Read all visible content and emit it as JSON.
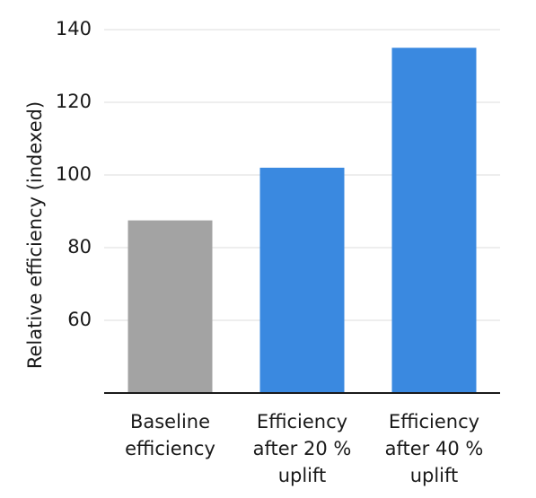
{
  "chart_data": {
    "type": "bar",
    "title": "",
    "xlabel": "",
    "ylabel": "Relative efficiency (indexed)",
    "ylim": [
      40,
      140
    ],
    "yticks": [
      60,
      80,
      100,
      120,
      140
    ],
    "grid": true,
    "legend": "none",
    "categories": [
      [
        "Baseline",
        "efficiency"
      ],
      [
        "Efficiency",
        "after 20 %",
        "uplift"
      ],
      [
        "Efficiency",
        "after 40 %",
        "uplift"
      ]
    ],
    "values": [
      87.5,
      102,
      135
    ],
    "colors": [
      "#a3a3a3",
      "#3a89e0",
      "#3a89e0"
    ]
  }
}
